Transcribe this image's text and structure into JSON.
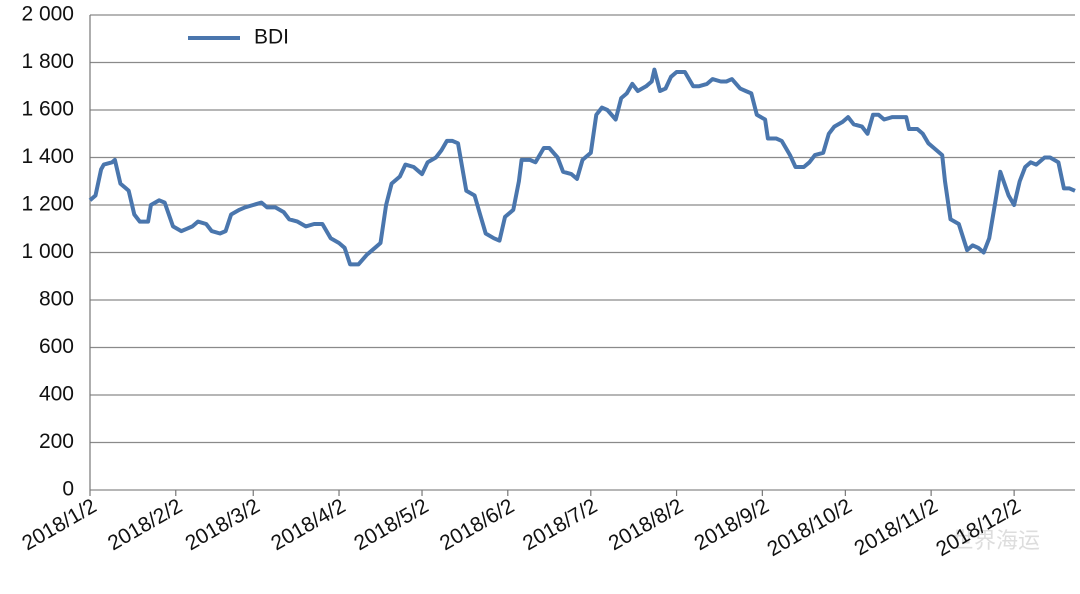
{
  "chart_data": {
    "type": "line",
    "xlim": [
      "2018/1/2",
      "2018/12/24"
    ],
    "xticks": [
      "2018/1/2",
      "2018/2/2",
      "2018/3/2",
      "2018/4/2",
      "2018/5/2",
      "2018/6/2",
      "2018/7/2",
      "2018/8/2",
      "2018/9/2",
      "2018/10/2",
      "2018/11/2",
      "2018/12/2"
    ],
    "ylim": [
      0,
      2000
    ],
    "yticks": [
      0,
      200,
      400,
      600,
      800,
      {
        "value": 1000,
        "label": "1 000"
      },
      {
        "value": 1200,
        "label": "1 200"
      },
      {
        "value": 1400,
        "label": "1 400"
      },
      {
        "value": 1600,
        "label": "1 600"
      },
      {
        "value": 1800,
        "label": "1 800"
      },
      {
        "value": 2000,
        "label": "2 000"
      }
    ],
    "grid": true,
    "legend": "top-left",
    "watermark": "世界海运",
    "x": [
      "2018/1/2",
      "2018/1/4",
      "2018/1/6",
      "2018/1/7",
      "2018/1/10",
      "2018/1/11",
      "2018/1/13",
      "2018/1/15",
      "2018/1/16",
      "2018/1/18",
      "2018/1/20",
      "2018/1/23",
      "2018/1/24",
      "2018/1/27",
      "2018/1/29",
      "2018/2/1",
      "2018/2/4",
      "2018/2/6",
      "2018/2/8",
      "2018/2/10",
      "2018/2/13",
      "2018/2/15",
      "2018/2/18",
      "2018/2/20",
      "2018/2/22",
      "2018/2/25",
      "2018/2/27",
      "2018/3/2",
      "2018/3/5",
      "2018/3/7",
      "2018/3/10",
      "2018/3/13",
      "2018/3/15",
      "2018/3/18",
      "2018/3/21",
      "2018/3/24",
      "2018/3/27",
      "2018/3/30",
      "2018/4/2",
      "2018/4/4",
      "2018/4/6",
      "2018/4/9",
      "2018/4/12",
      "2018/4/15",
      "2018/4/17",
      "2018/4/19",
      "2018/4/21",
      "2018/4/24",
      "2018/4/26",
      "2018/4/29",
      "2018/5/1",
      "2018/5/2",
      "2018/5/4",
      "2018/5/7",
      "2018/5/9",
      "2018/5/11",
      "2018/5/13",
      "2018/5/15",
      "2018/5/18",
      "2018/5/21",
      "2018/5/23",
      "2018/5/25",
      "2018/5/28",
      "2018/5/30",
      "2018/6/1",
      "2018/6/4",
      "2018/6/6",
      "2018/6/7",
      "2018/6/10",
      "2018/6/12",
      "2018/6/15",
      "2018/6/17",
      "2018/6/20",
      "2018/6/22",
      "2018/6/25",
      "2018/6/27",
      "2018/6/29",
      "2018/7/2",
      "2018/7/4",
      "2018/7/6",
      "2018/7/8",
      "2018/7/11",
      "2018/7/13",
      "2018/7/15",
      "2018/7/17",
      "2018/7/19",
      "2018/7/22",
      "2018/7/24",
      "2018/7/25",
      "2018/7/27",
      "2018/7/29",
      "2018/7/31",
      "2018/8/2",
      "2018/8/5",
      "2018/8/8",
      "2018/8/10",
      "2018/8/13",
      "2018/8/15",
      "2018/8/18",
      "2018/8/20",
      "2018/8/22",
      "2018/8/25",
      "2018/8/27",
      "2018/8/29",
      "2018/8/31",
      "2018/9/3",
      "2018/9/4",
      "2018/9/7",
      "2018/9/9",
      "2018/9/12",
      "2018/9/14",
      "2018/9/17",
      "2018/9/19",
      "2018/9/21",
      "2018/9/24",
      "2018/9/26",
      "2018/9/28",
      "2018/10/1",
      "2018/10/3",
      "2018/10/5",
      "2018/10/8",
      "2018/10/10",
      "2018/10/12",
      "2018/10/14",
      "2018/10/16",
      "2018/10/19",
      "2018/10/21",
      "2018/10/24",
      "2018/10/25",
      "2018/10/28",
      "2018/10/30",
      "2018/11/1",
      "2018/11/3",
      "2018/11/6",
      "2018/11/7",
      "2018/11/9",
      "2018/11/12",
      "2018/11/15",
      "2018/11/17",
      "2018/11/19",
      "2018/11/21",
      "2018/11/23",
      "2018/11/25",
      "2018/11/27",
      "2018/11/30",
      "2018/12/2",
      "2018/12/4",
      "2018/12/6",
      "2018/12/8",
      "2018/12/10",
      "2018/12/13",
      "2018/12/15",
      "2018/12/18",
      "2018/12/20",
      "2018/12/22",
      "2018/12/24"
    ],
    "series": [
      {
        "name": "BDI",
        "color": "#4a76ad",
        "values": [
          1220,
          1240,
          1350,
          1370,
          1380,
          1390,
          1290,
          1270,
          1260,
          1160,
          1130,
          1130,
          1200,
          1220,
          1210,
          1110,
          1090,
          1100,
          1110,
          1130,
          1120,
          1090,
          1080,
          1090,
          1160,
          1180,
          1190,
          1200,
          1210,
          1190,
          1190,
          1170,
          1140,
          1130,
          1110,
          1120,
          1120,
          1060,
          1040,
          1020,
          950,
          950,
          990,
          1020,
          1040,
          1200,
          1290,
          1320,
          1370,
          1360,
          1340,
          1330,
          1380,
          1400,
          1430,
          1470,
          1470,
          1460,
          1260,
          1240,
          1160,
          1080,
          1060,
          1050,
          1150,
          1180,
          1300,
          1390,
          1390,
          1380,
          1440,
          1440,
          1400,
          1340,
          1330,
          1310,
          1390,
          1420,
          1580,
          1610,
          1600,
          1560,
          1650,
          1670,
          1710,
          1680,
          1700,
          1720,
          1770,
          1680,
          1690,
          1740,
          1760,
          1760,
          1700,
          1700,
          1710,
          1730,
          1720,
          1720,
          1730,
          1690,
          1680,
          1670,
          1580,
          1560,
          1480,
          1480,
          1470,
          1410,
          1360,
          1360,
          1380,
          1410,
          1420,
          1500,
          1530,
          1550,
          1570,
          1540,
          1530,
          1500,
          1580,
          1580,
          1560,
          1570,
          1570,
          1570,
          1520,
          1520,
          1500,
          1460,
          1440,
          1410,
          1300,
          1140,
          1120,
          1010,
          1030,
          1020,
          1000,
          1060,
          1200,
          1340,
          1240,
          1200,
          1300,
          1360,
          1380,
          1370,
          1400,
          1400,
          1380,
          1270,
          1270,
          1260
        ]
      }
    ]
  }
}
